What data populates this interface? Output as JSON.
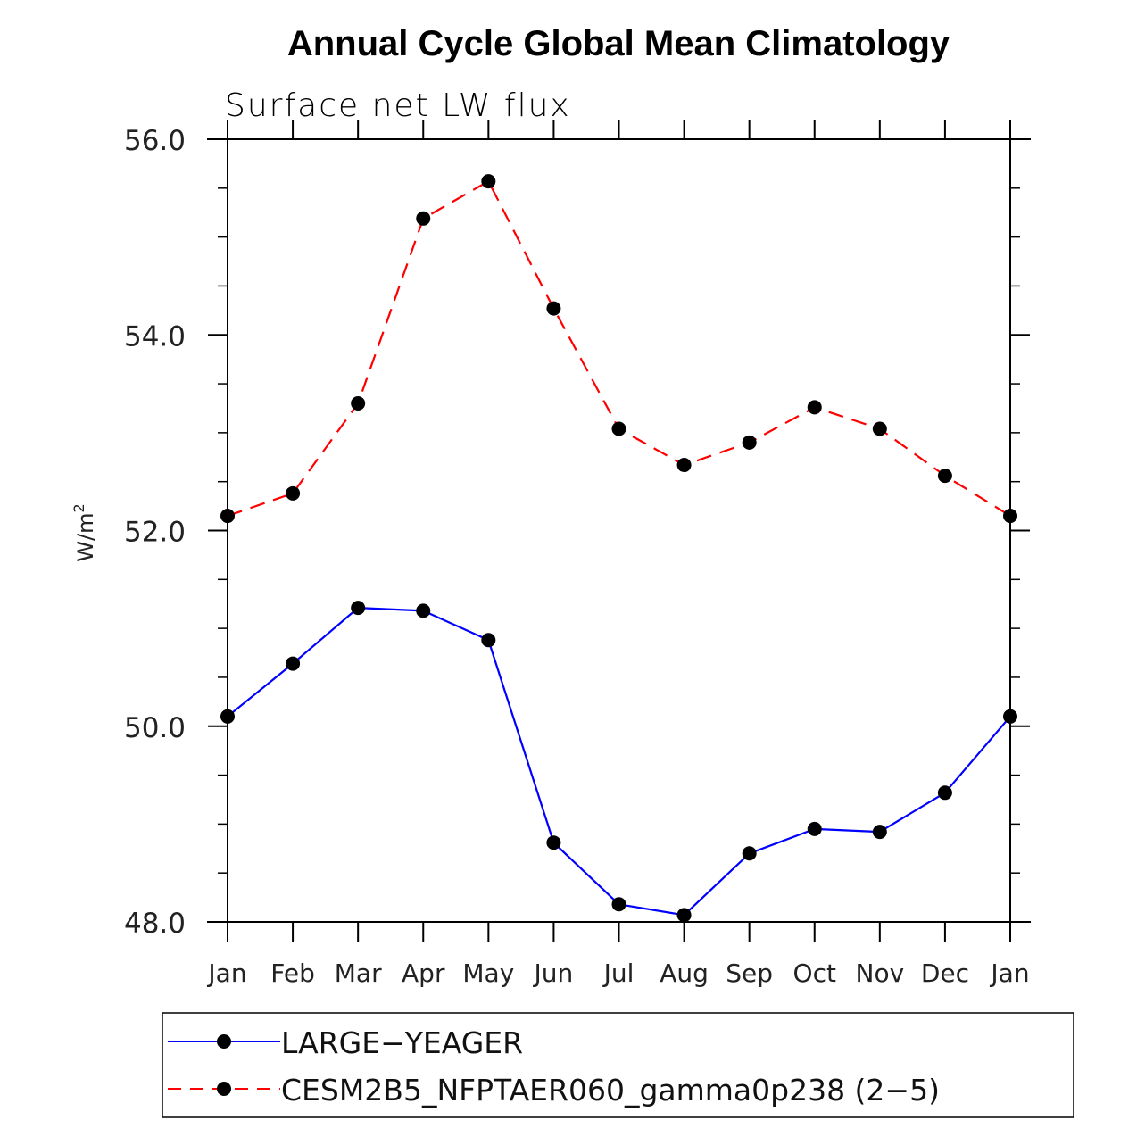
{
  "chart_data": {
    "type": "line",
    "title": "Annual Cycle Global Mean Climatology",
    "subtitle": "Surface net LW flux",
    "xlabel": "",
    "ylabel": "W/m",
    "ylabel_superscript": "2",
    "categories": [
      "Jan",
      "Feb",
      "Mar",
      "Apr",
      "May",
      "Jun",
      "Jul",
      "Aug",
      "Sep",
      "Oct",
      "Nov",
      "Dec",
      "Jan"
    ],
    "ylim": [
      48.0,
      56.0
    ],
    "yticks": [
      48.0,
      50.0,
      52.0,
      54.0,
      56.0
    ],
    "ytick_labels": [
      "48.0",
      "50.0",
      "52.0",
      "54.0",
      "56.0"
    ],
    "yminor_step": 0.5,
    "grid": false,
    "legend_position": "bottom",
    "series": [
      {
        "name": "LARGE−YEAGER",
        "color": "#0000ff",
        "line_style": "solid",
        "marker": "filled-circle",
        "marker_color": "#000000",
        "values": [
          50.1,
          50.64,
          51.21,
          51.18,
          50.88,
          48.81,
          48.18,
          48.07,
          48.7,
          48.95,
          48.92,
          49.32,
          50.1
        ]
      },
      {
        "name": "CESM2B5_NFPTAER060_gamma0p238 (2−5)",
        "color": "#ff0000",
        "line_style": "dashed",
        "marker": "filled-circle",
        "marker_color": "#000000",
        "values": [
          52.15,
          52.38,
          53.3,
          55.19,
          55.57,
          54.27,
          53.04,
          52.67,
          52.9,
          53.26,
          53.04,
          52.56,
          52.15
        ]
      }
    ]
  }
}
